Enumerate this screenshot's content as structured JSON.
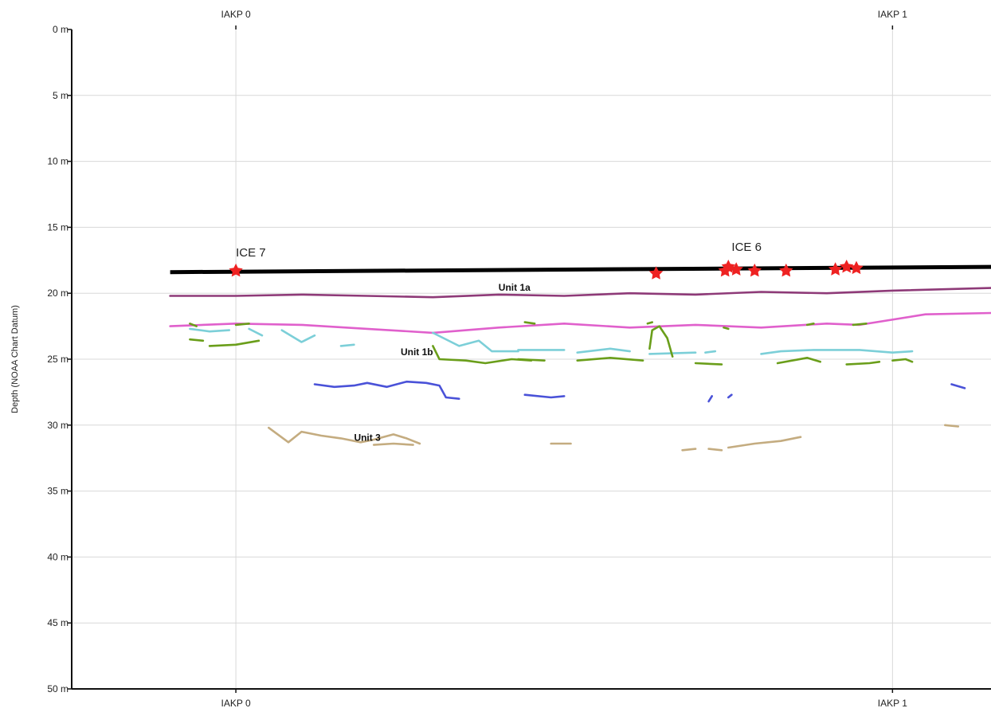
{
  "chart_data": {
    "type": "line",
    "ylabel": "Depth (NOAA Chart Datum)",
    "ylim": [
      0,
      50
    ],
    "y_inverted": true,
    "y_ticks": [
      {
        "value": 0,
        "label": "0 m"
      },
      {
        "value": 5,
        "label": "5 m"
      },
      {
        "value": 10,
        "label": "10 m"
      },
      {
        "value": 15,
        "label": "15 m"
      },
      {
        "value": 20,
        "label": "20 m"
      },
      {
        "value": 25,
        "label": "25 m"
      },
      {
        "value": 30,
        "label": "30 m"
      },
      {
        "value": 35,
        "label": "35 m"
      },
      {
        "value": 40,
        "label": "40 m"
      },
      {
        "value": 45,
        "label": "45 m"
      },
      {
        "value": 50,
        "label": "50 m"
      }
    ],
    "xlim": [
      -0.25,
      1.15
    ],
    "x_ticks": [
      {
        "value": 0,
        "label": "IAKP 0"
      },
      {
        "value": 1,
        "label": "IAKP 1"
      }
    ],
    "grid": true,
    "seafloor": {
      "color": "#000000",
      "points": [
        [
          -0.1,
          18.4
        ],
        [
          1.15,
          18.0
        ]
      ]
    },
    "cores": [
      {
        "label": "ICE 7",
        "x": 0.0,
        "y": 18.3,
        "label_x": 0.0,
        "label_y": 17.2
      },
      {
        "label": "ICE 6",
        "x": 0.755,
        "y": 18.0,
        "label_x": 0.755,
        "label_y": 16.8
      }
    ],
    "core_markers": {
      "color": "#ee2222",
      "points": [
        [
          0.0,
          18.3
        ],
        [
          0.64,
          18.5
        ],
        [
          0.745,
          18.3
        ],
        [
          0.75,
          18.0
        ],
        [
          0.762,
          18.2
        ],
        [
          0.79,
          18.3
        ],
        [
          0.838,
          18.3
        ],
        [
          0.913,
          18.2
        ],
        [
          0.93,
          18.0
        ],
        [
          0.945,
          18.1
        ]
      ]
    },
    "series": [
      {
        "color": "#8e3a78",
        "segments": [
          [
            [
              -0.1,
              20.2
            ],
            [
              0.0,
              20.2
            ],
            [
              0.1,
              20.1
            ],
            [
              0.2,
              20.2
            ],
            [
              0.3,
              20.3
            ],
            [
              0.4,
              20.1
            ],
            [
              0.5,
              20.2
            ],
            [
              0.6,
              20.0
            ],
            [
              0.7,
              20.1
            ],
            [
              0.8,
              19.9
            ],
            [
              0.9,
              20.0
            ],
            [
              1.0,
              19.8
            ],
            [
              1.15,
              19.6
            ]
          ]
        ]
      },
      {
        "color": "#e060cc",
        "segments": [
          [
            [
              -0.1,
              22.5
            ],
            [
              0.0,
              22.3
            ],
            [
              0.1,
              22.4
            ],
            [
              0.2,
              22.7
            ],
            [
              0.3,
              23.0
            ],
            [
              0.4,
              22.6
            ],
            [
              0.5,
              22.3
            ],
            [
              0.6,
              22.6
            ],
            [
              0.7,
              22.4
            ],
            [
              0.8,
              22.6
            ],
            [
              0.9,
              22.3
            ],
            [
              0.95,
              22.4
            ],
            [
              1.05,
              21.6
            ],
            [
              1.15,
              21.5
            ]
          ]
        ]
      },
      {
        "color": "#7ccfd8",
        "segments": [
          [
            [
              -0.07,
              22.7
            ],
            [
              -0.04,
              22.9
            ],
            [
              -0.01,
              22.8
            ]
          ],
          [
            [
              0.02,
              22.7
            ],
            [
              0.04,
              23.2
            ]
          ],
          [
            [
              0.07,
              22.8
            ],
            [
              0.1,
              23.7
            ],
            [
              0.12,
              23.2
            ]
          ],
          [
            [
              0.16,
              24.0
            ],
            [
              0.18,
              23.9
            ]
          ],
          [
            [
              0.3,
              23.0
            ],
            [
              0.34,
              24.0
            ],
            [
              0.37,
              23.6
            ],
            [
              0.39,
              24.4
            ],
            [
              0.43,
              24.4
            ]
          ],
          [
            [
              0.43,
              24.3
            ],
            [
              0.5,
              24.3
            ]
          ],
          [
            [
              0.52,
              24.5
            ],
            [
              0.57,
              24.2
            ],
            [
              0.6,
              24.4
            ]
          ],
          [
            [
              0.63,
              24.6
            ],
            [
              0.7,
              24.5
            ]
          ],
          [
            [
              0.715,
              24.5
            ],
            [
              0.73,
              24.4
            ]
          ],
          [
            [
              0.8,
              24.6
            ],
            [
              0.83,
              24.4
            ],
            [
              0.88,
              24.3
            ],
            [
              0.95,
              24.3
            ],
            [
              1.0,
              24.5
            ],
            [
              1.03,
              24.4
            ]
          ]
        ]
      },
      {
        "color": "#6a9e1a",
        "segments": [
          [
            [
              -0.07,
              22.3
            ],
            [
              -0.06,
              22.5
            ]
          ],
          [
            [
              -0.07,
              23.5
            ],
            [
              -0.05,
              23.6
            ]
          ],
          [
            [
              -0.04,
              24.0
            ],
            [
              0.0,
              23.9
            ],
            [
              0.035,
              23.6
            ]
          ],
          [
            [
              0.0,
              22.4
            ],
            [
              0.02,
              22.3
            ]
          ],
          [
            [
              0.3,
              24.0
            ],
            [
              0.31,
              25.0
            ],
            [
              0.35,
              25.1
            ],
            [
              0.38,
              25.3
            ],
            [
              0.42,
              25.0
            ],
            [
              0.45,
              25.1
            ]
          ],
          [
            [
              0.43,
              25.0
            ],
            [
              0.47,
              25.1
            ]
          ],
          [
            [
              0.44,
              22.2
            ],
            [
              0.455,
              22.3
            ]
          ],
          [
            [
              0.52,
              25.1
            ],
            [
              0.57,
              24.9
            ],
            [
              0.62,
              25.1
            ]
          ],
          [
            [
              0.627,
              22.3
            ],
            [
              0.634,
              22.2
            ]
          ],
          [
            [
              0.63,
              24.2
            ],
            [
              0.634,
              22.8
            ],
            [
              0.645,
              22.5
            ],
            [
              0.657,
              23.4
            ],
            [
              0.665,
              24.8
            ]
          ],
          [
            [
              0.7,
              25.3
            ],
            [
              0.74,
              25.4
            ]
          ],
          [
            [
              0.743,
              22.6
            ],
            [
              0.75,
              22.7
            ]
          ],
          [
            [
              0.825,
              25.3
            ],
            [
              0.87,
              24.9
            ],
            [
              0.89,
              25.2
            ]
          ],
          [
            [
              0.87,
              22.4
            ],
            [
              0.88,
              22.3
            ]
          ],
          [
            [
              0.93,
              25.4
            ],
            [
              0.965,
              25.3
            ],
            [
              0.98,
              25.2
            ]
          ],
          [
            [
              0.94,
              22.4
            ],
            [
              0.96,
              22.3
            ]
          ],
          [
            [
              1.0,
              25.1
            ],
            [
              1.02,
              25.0
            ],
            [
              1.03,
              25.2
            ]
          ]
        ]
      },
      {
        "color": "#4a52d8",
        "segments": [
          [
            [
              0.12,
              26.9
            ],
            [
              0.15,
              27.1
            ],
            [
              0.18,
              27.0
            ],
            [
              0.2,
              26.8
            ],
            [
              0.23,
              27.1
            ],
            [
              0.26,
              26.7
            ],
            [
              0.29,
              26.8
            ],
            [
              0.31,
              27.0
            ],
            [
              0.32,
              27.9
            ],
            [
              0.34,
              28.0
            ]
          ],
          [
            [
              0.44,
              27.7
            ],
            [
              0.48,
              27.9
            ],
            [
              0.5,
              27.8
            ]
          ],
          [
            [
              0.72,
              28.2
            ],
            [
              0.725,
              27.8
            ]
          ],
          [
            [
              0.75,
              27.9
            ],
            [
              0.755,
              27.7
            ]
          ],
          [
            [
              1.09,
              26.9
            ],
            [
              1.11,
              27.2
            ]
          ]
        ]
      },
      {
        "color": "#c4ac80",
        "segments": [
          [
            [
              0.05,
              30.2
            ],
            [
              0.08,
              31.3
            ],
            [
              0.1,
              30.5
            ],
            [
              0.13,
              30.8
            ],
            [
              0.16,
              31.0
            ],
            [
              0.19,
              31.3
            ],
            [
              0.21,
              31.1
            ],
            [
              0.24,
              30.7
            ],
            [
              0.26,
              31.0
            ],
            [
              0.28,
              31.4
            ]
          ],
          [
            [
              0.21,
              31.5
            ],
            [
              0.24,
              31.4
            ],
            [
              0.27,
              31.5
            ]
          ],
          [
            [
              0.48,
              31.4
            ],
            [
              0.51,
              31.4
            ]
          ],
          [
            [
              0.68,
              31.9
            ],
            [
              0.7,
              31.8
            ]
          ],
          [
            [
              0.72,
              31.8
            ],
            [
              0.74,
              31.9
            ]
          ],
          [
            [
              0.75,
              31.7
            ],
            [
              0.79,
              31.4
            ],
            [
              0.83,
              31.2
            ],
            [
              0.86,
              30.9
            ]
          ],
          [
            [
              1.08,
              30.0
            ],
            [
              1.1,
              30.1
            ]
          ]
        ]
      }
    ],
    "annotations": [
      {
        "text": "Unit 1a",
        "x": 0.4,
        "y": 19.8
      },
      {
        "text": "Unit 1b",
        "x": 0.251,
        "y": 24.7
      },
      {
        "text": "Unit 3",
        "x": 0.18,
        "y": 31.2
      }
    ]
  }
}
